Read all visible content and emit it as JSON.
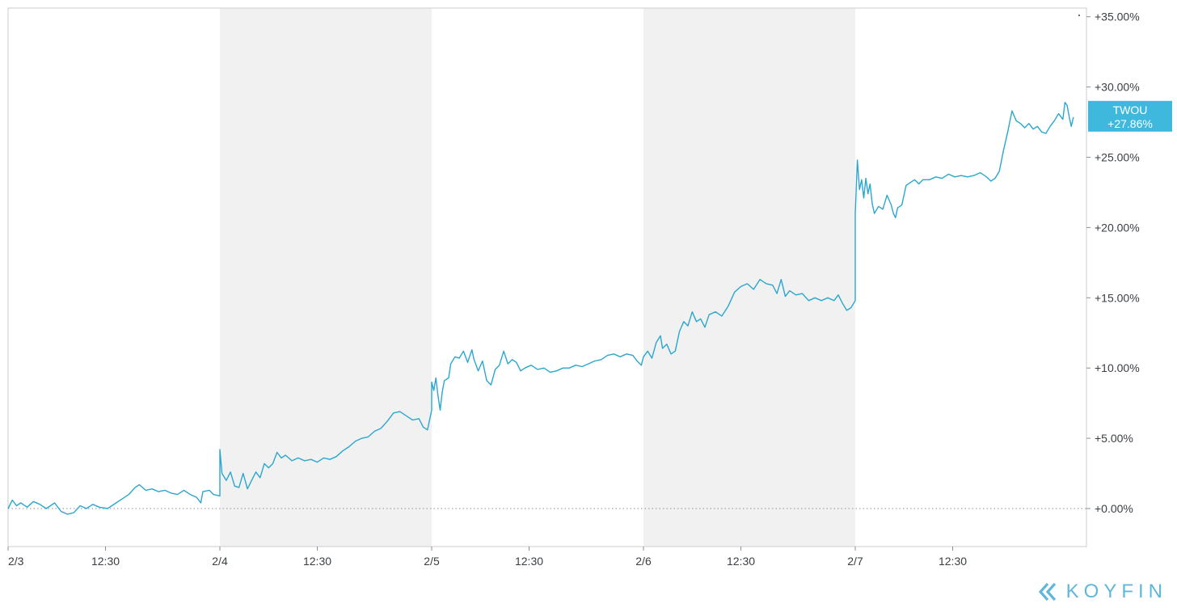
{
  "chart_data": {
    "type": "line",
    "title": "",
    "xlabel": "",
    "ylabel": "",
    "ylim": [
      -2.5,
      35.5
    ],
    "y_ticks": [
      0,
      5,
      10,
      15,
      20,
      25,
      30,
      35
    ],
    "y_tick_labels": [
      "+0.00%",
      "+5.00%",
      "+10.00%",
      "+15.00%",
      "+20.00%",
      "+25.00%",
      "+30.00%",
      "+35.00%"
    ],
    "x_tick_labels": [
      "2/3",
      "12:30",
      "2/4",
      "12:30",
      "2/5",
      "12:30",
      "2/6",
      "12:30",
      "2/7",
      "12:30"
    ],
    "x_tick_positions": [
      0,
      0.46,
      1,
      1.46,
      2,
      2.46,
      3,
      3.46,
      4,
      4.46
    ],
    "xlim": [
      0,
      5.1
    ],
    "shaded_days": [
      [
        1,
        2
      ],
      [
        3,
        4
      ]
    ],
    "grid": false,
    "zero_line": "dotted",
    "series": [
      {
        "name": "TWOU",
        "color": "#2aa7cf",
        "last_value_label": "+27.86%",
        "points": [
          [
            0.0,
            0.0
          ],
          [
            0.02,
            0.6
          ],
          [
            0.04,
            0.2
          ],
          [
            0.06,
            0.4
          ],
          [
            0.09,
            0.1
          ],
          [
            0.12,
            0.5
          ],
          [
            0.15,
            0.3
          ],
          [
            0.18,
            0.0
          ],
          [
            0.22,
            0.4
          ],
          [
            0.25,
            -0.2
          ],
          [
            0.28,
            -0.4
          ],
          [
            0.31,
            -0.3
          ],
          [
            0.34,
            0.2
          ],
          [
            0.37,
            0.0
          ],
          [
            0.4,
            0.3
          ],
          [
            0.43,
            0.1
          ],
          [
            0.47,
            0.0
          ],
          [
            0.51,
            0.4
          ],
          [
            0.54,
            0.7
          ],
          [
            0.57,
            1.0
          ],
          [
            0.6,
            1.5
          ],
          [
            0.62,
            1.7
          ],
          [
            0.65,
            1.3
          ],
          [
            0.68,
            1.4
          ],
          [
            0.71,
            1.2
          ],
          [
            0.74,
            1.3
          ],
          [
            0.77,
            1.1
          ],
          [
            0.8,
            1.0
          ],
          [
            0.83,
            1.3
          ],
          [
            0.86,
            1.0
          ],
          [
            0.89,
            0.8
          ],
          [
            0.91,
            0.4
          ],
          [
            0.92,
            1.2
          ],
          [
            0.95,
            1.3
          ],
          [
            0.97,
            1.0
          ],
          [
            1.0,
            0.9
          ],
          [
            1.0,
            4.2
          ],
          [
            1.01,
            2.5
          ],
          [
            1.03,
            2.0
          ],
          [
            1.05,
            2.6
          ],
          [
            1.07,
            1.6
          ],
          [
            1.09,
            1.5
          ],
          [
            1.11,
            2.5
          ],
          [
            1.13,
            1.4
          ],
          [
            1.15,
            2.0
          ],
          [
            1.17,
            2.6
          ],
          [
            1.19,
            2.2
          ],
          [
            1.21,
            3.2
          ],
          [
            1.23,
            2.9
          ],
          [
            1.25,
            3.2
          ],
          [
            1.27,
            4.0
          ],
          [
            1.29,
            3.6
          ],
          [
            1.31,
            3.8
          ],
          [
            1.34,
            3.4
          ],
          [
            1.37,
            3.6
          ],
          [
            1.4,
            3.4
          ],
          [
            1.43,
            3.5
          ],
          [
            1.46,
            3.3
          ],
          [
            1.49,
            3.6
          ],
          [
            1.52,
            3.5
          ],
          [
            1.55,
            3.7
          ],
          [
            1.58,
            4.1
          ],
          [
            1.61,
            4.4
          ],
          [
            1.64,
            4.8
          ],
          [
            1.67,
            5.0
          ],
          [
            1.7,
            5.1
          ],
          [
            1.73,
            5.5
          ],
          [
            1.76,
            5.7
          ],
          [
            1.79,
            6.2
          ],
          [
            1.82,
            6.8
          ],
          [
            1.85,
            6.9
          ],
          [
            1.88,
            6.6
          ],
          [
            1.91,
            6.3
          ],
          [
            1.94,
            6.4
          ],
          [
            1.96,
            5.8
          ],
          [
            1.98,
            5.6
          ],
          [
            2.0,
            7.0
          ],
          [
            2.0,
            9.0
          ],
          [
            2.01,
            8.4
          ],
          [
            2.02,
            9.3
          ],
          [
            2.03,
            8.0
          ],
          [
            2.04,
            7.0
          ],
          [
            2.05,
            8.3
          ],
          [
            2.06,
            9.1
          ],
          [
            2.08,
            9.3
          ],
          [
            2.09,
            10.3
          ],
          [
            2.11,
            10.8
          ],
          [
            2.13,
            10.7
          ],
          [
            2.15,
            11.2
          ],
          [
            2.17,
            10.4
          ],
          [
            2.19,
            11.3
          ],
          [
            2.2,
            10.6
          ],
          [
            2.22,
            9.8
          ],
          [
            2.24,
            10.5
          ],
          [
            2.26,
            9.1
          ],
          [
            2.28,
            8.8
          ],
          [
            2.3,
            9.9
          ],
          [
            2.32,
            10.2
          ],
          [
            2.34,
            11.2
          ],
          [
            2.36,
            10.3
          ],
          [
            2.38,
            10.6
          ],
          [
            2.4,
            10.4
          ],
          [
            2.42,
            9.8
          ],
          [
            2.44,
            10.0
          ],
          [
            2.47,
            10.2
          ],
          [
            2.5,
            9.9
          ],
          [
            2.53,
            10.0
          ],
          [
            2.56,
            9.7
          ],
          [
            2.59,
            9.8
          ],
          [
            2.62,
            10.0
          ],
          [
            2.65,
            10.0
          ],
          [
            2.68,
            10.2
          ],
          [
            2.71,
            10.1
          ],
          [
            2.74,
            10.3
          ],
          [
            2.77,
            10.5
          ],
          [
            2.8,
            10.6
          ],
          [
            2.83,
            10.9
          ],
          [
            2.86,
            11.0
          ],
          [
            2.89,
            10.8
          ],
          [
            2.92,
            11.0
          ],
          [
            2.95,
            10.9
          ],
          [
            2.97,
            10.5
          ],
          [
            2.99,
            10.2
          ],
          [
            3.0,
            10.8
          ],
          [
            3.02,
            11.2
          ],
          [
            3.04,
            10.7
          ],
          [
            3.06,
            11.8
          ],
          [
            3.08,
            12.3
          ],
          [
            3.09,
            11.4
          ],
          [
            3.11,
            11.7
          ],
          [
            3.13,
            11.0
          ],
          [
            3.15,
            11.2
          ],
          [
            3.17,
            12.6
          ],
          [
            3.19,
            13.3
          ],
          [
            3.21,
            13.0
          ],
          [
            3.23,
            14.0
          ],
          [
            3.25,
            13.3
          ],
          [
            3.27,
            13.5
          ],
          [
            3.29,
            12.9
          ],
          [
            3.31,
            13.8
          ],
          [
            3.34,
            14.0
          ],
          [
            3.37,
            13.7
          ],
          [
            3.4,
            14.4
          ],
          [
            3.43,
            15.4
          ],
          [
            3.46,
            15.8
          ],
          [
            3.49,
            16.0
          ],
          [
            3.52,
            15.6
          ],
          [
            3.55,
            16.3
          ],
          [
            3.58,
            16.0
          ],
          [
            3.61,
            15.9
          ],
          [
            3.63,
            15.3
          ],
          [
            3.65,
            16.3
          ],
          [
            3.67,
            15.1
          ],
          [
            3.69,
            15.5
          ],
          [
            3.72,
            15.2
          ],
          [
            3.75,
            15.3
          ],
          [
            3.78,
            14.8
          ],
          [
            3.81,
            15.0
          ],
          [
            3.84,
            14.8
          ],
          [
            3.87,
            15.0
          ],
          [
            3.9,
            14.8
          ],
          [
            3.92,
            15.2
          ],
          [
            3.94,
            14.6
          ],
          [
            3.96,
            14.1
          ],
          [
            3.98,
            14.3
          ],
          [
            4.0,
            14.8
          ],
          [
            4.0,
            21.0
          ],
          [
            4.01,
            24.8
          ],
          [
            4.02,
            22.7
          ],
          [
            4.03,
            23.4
          ],
          [
            4.04,
            22.1
          ],
          [
            4.05,
            23.5
          ],
          [
            4.06,
            22.4
          ],
          [
            4.07,
            23.1
          ],
          [
            4.08,
            21.7
          ],
          [
            4.09,
            21.0
          ],
          [
            4.11,
            21.5
          ],
          [
            4.13,
            21.3
          ],
          [
            4.15,
            22.3
          ],
          [
            4.17,
            21.6
          ],
          [
            4.18,
            21.0
          ],
          [
            4.19,
            20.7
          ],
          [
            4.2,
            21.4
          ],
          [
            4.22,
            21.6
          ],
          [
            4.24,
            23.0
          ],
          [
            4.26,
            23.2
          ],
          [
            4.28,
            23.4
          ],
          [
            4.3,
            23.1
          ],
          [
            4.32,
            23.4
          ],
          [
            4.35,
            23.4
          ],
          [
            4.38,
            23.6
          ],
          [
            4.41,
            23.5
          ],
          [
            4.44,
            23.8
          ],
          [
            4.47,
            23.6
          ],
          [
            4.5,
            23.7
          ],
          [
            4.53,
            23.6
          ],
          [
            4.56,
            23.7
          ],
          [
            4.59,
            23.9
          ],
          [
            4.62,
            23.6
          ],
          [
            4.64,
            23.3
          ],
          [
            4.66,
            23.5
          ],
          [
            4.68,
            24.0
          ],
          [
            4.7,
            25.5
          ],
          [
            4.72,
            26.8
          ],
          [
            4.74,
            28.3
          ],
          [
            4.76,
            27.6
          ],
          [
            4.78,
            27.4
          ],
          [
            4.8,
            27.1
          ],
          [
            4.82,
            27.4
          ],
          [
            4.84,
            27.0
          ],
          [
            4.86,
            27.2
          ],
          [
            4.88,
            26.8
          ],
          [
            4.9,
            26.7
          ],
          [
            4.92,
            27.2
          ],
          [
            4.94,
            27.6
          ],
          [
            4.96,
            28.1
          ],
          [
            4.98,
            27.7
          ],
          [
            4.99,
            28.9
          ],
          [
            5.0,
            28.7
          ],
          [
            5.01,
            27.9
          ],
          [
            5.02,
            27.2
          ],
          [
            5.03,
            27.86
          ]
        ]
      }
    ]
  },
  "branding": {
    "logo_text": "KOYFIN",
    "logo_color": "#5fb7dc"
  }
}
